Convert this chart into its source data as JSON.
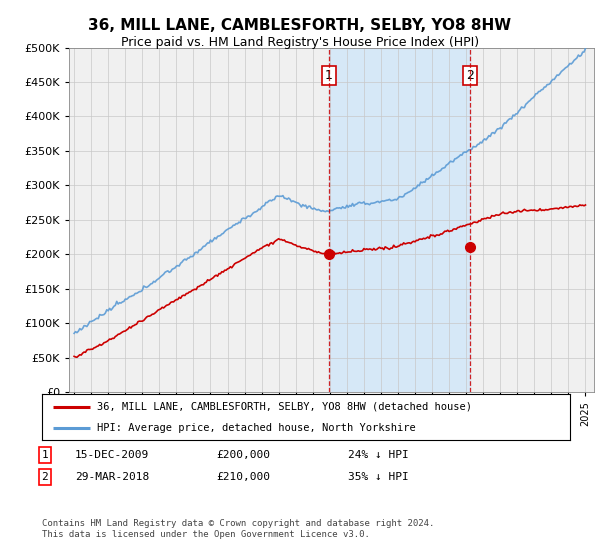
{
  "title": "36, MILL LANE, CAMBLESFORTH, SELBY, YO8 8HW",
  "subtitle": "Price paid vs. HM Land Registry's House Price Index (HPI)",
  "legend_line1": "36, MILL LANE, CAMBLESFORTH, SELBY, YO8 8HW (detached house)",
  "legend_line2": "HPI: Average price, detached house, North Yorkshire",
  "transaction1_date": "15-DEC-2009",
  "transaction1_price": "£200,000",
  "transaction1_pct": "24% ↓ HPI",
  "transaction2_date": "29-MAR-2018",
  "transaction2_price": "£210,000",
  "transaction2_pct": "35% ↓ HPI",
  "footer": "Contains HM Land Registry data © Crown copyright and database right 2024.\nThis data is licensed under the Open Government Licence v3.0.",
  "hpi_color": "#5b9bd5",
  "price_color": "#cc0000",
  "vline_color": "#cc0000",
  "shade_color": "#d6e8f7",
  "background_color": "#f0f0f0",
  "plot_bg": "#ffffff",
  "ylim": [
    0,
    500000
  ],
  "yticks": [
    0,
    50000,
    100000,
    150000,
    200000,
    250000,
    300000,
    350000,
    400000,
    450000,
    500000
  ],
  "transaction1_x": 2009.958,
  "transaction1_y": 200000,
  "transaction2_x": 2018.24,
  "transaction2_y": 210000,
  "xmin": 1995,
  "xmax": 2025
}
